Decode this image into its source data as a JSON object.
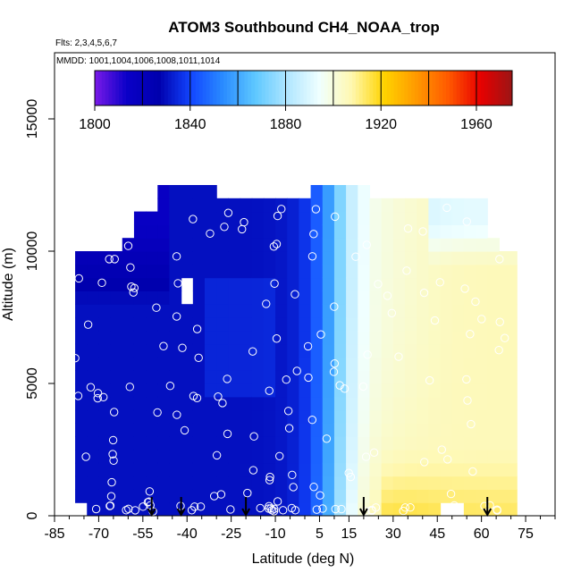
{
  "chart_data": {
    "type": "heatmap",
    "title": "ATOM3 Southbound CH4_NOAA_trop",
    "flights_label": "Flts: 2,3,4,5,6,7",
    "mmdd_label": "MMDD: 1001,1004,1006,1008,1011,1014",
    "xlabel": "Latitude (deg N)",
    "ylabel": "Altitude (m)",
    "xlim": [
      -85,
      85
    ],
    "ylim": [
      0,
      17500
    ],
    "x_ticks": [
      -85,
      -70,
      -55,
      -40,
      -25,
      -10,
      5,
      15,
      30,
      45,
      60,
      75
    ],
    "y_ticks": [
      0,
      5000,
      10000,
      15000
    ],
    "colorbar": {
      "min": 1800,
      "max": 1975,
      "ticks": [
        1800,
        1840,
        1880,
        1920,
        1960
      ],
      "colors": [
        "#7a1ae8",
        "#0a00c8",
        "#0000ad",
        "#1246ff",
        "#2a8cff",
        "#5ec8ff",
        "#b0e6ff",
        "#f0ffff",
        "#fff8b0",
        "#ffd400",
        "#ff9a00",
        "#ff5a00",
        "#e80000",
        "#9b1515"
      ]
    },
    "grid_lat_edges": [
      -78,
      -74,
      -70,
      -66,
      -62,
      -58,
      -54,
      -50,
      -46,
      -42,
      -38,
      -34,
      -30,
      -26,
      -22,
      -18,
      -14,
      -10,
      -6,
      -2,
      2,
      6,
      10,
      14,
      18,
      22,
      26,
      30,
      34,
      38,
      42,
      46,
      50,
      54,
      58,
      62,
      66,
      70,
      72
    ],
    "grid_alt_step_m": 500,
    "highlighted_latitudes": [
      -52,
      -42,
      -20,
      20,
      62
    ]
  }
}
